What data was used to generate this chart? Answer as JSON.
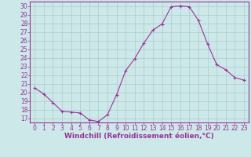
{
  "hours": [
    0,
    1,
    2,
    3,
    4,
    5,
    6,
    7,
    8,
    9,
    10,
    11,
    12,
    13,
    14,
    15,
    16,
    17,
    18,
    19,
    20,
    21,
    22,
    23
  ],
  "values": [
    20.5,
    19.8,
    18.8,
    17.8,
    17.7,
    17.6,
    16.8,
    16.6,
    17.4,
    19.7,
    22.5,
    23.9,
    25.7,
    27.2,
    27.9,
    29.9,
    30.0,
    29.9,
    28.3,
    25.6,
    23.2,
    22.6,
    21.7,
    21.4
  ],
  "line_color": "#993399",
  "marker": "+",
  "marker_size": 3,
  "bg_color": "#cce8e8",
  "grid_color": "#aacccc",
  "xlabel": "Windchill (Refroidissement éolien,°C)",
  "xlim": [
    -0.5,
    23.5
  ],
  "ylim": [
    16.5,
    30.5
  ],
  "yticks": [
    17,
    18,
    19,
    20,
    21,
    22,
    23,
    24,
    25,
    26,
    27,
    28,
    29,
    30
  ],
  "xticks": [
    0,
    1,
    2,
    3,
    4,
    5,
    6,
    7,
    8,
    9,
    10,
    11,
    12,
    13,
    14,
    15,
    16,
    17,
    18,
    19,
    20,
    21,
    22,
    23
  ],
  "tick_fontsize": 5.5,
  "xlabel_fontsize": 6.5,
  "spine_color": "#993399"
}
